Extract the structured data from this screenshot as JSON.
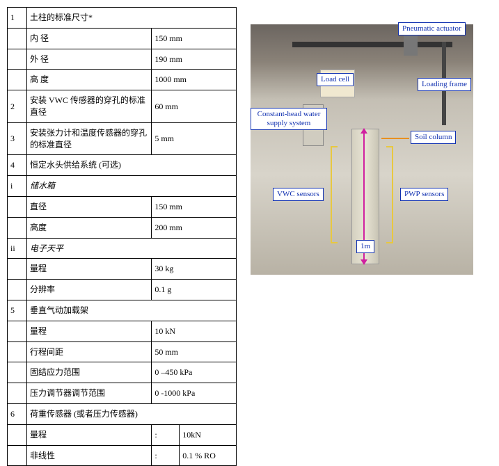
{
  "table": {
    "rows": [
      {
        "n": "1",
        "label": "土柱的标准尺寸*",
        "span": "header"
      },
      {
        "n": "",
        "label": "内 径",
        "val": "150 mm"
      },
      {
        "n": "",
        "label": "外 径",
        "val": "190 mm"
      },
      {
        "n": "",
        "label": "高 度",
        "val": "1000 mm"
      },
      {
        "n": "2",
        "label": "安装 VWC 传感器的穿孔的标准直径",
        "val": "60 mm"
      },
      {
        "n": "3",
        "label": "安装张力计和温度传感器的穿孔的标准直径",
        "val": "5 mm"
      },
      {
        "n": "4",
        "label": "恒定水头供给系统 (可选)",
        "span": "header"
      },
      {
        "n": "i",
        "label": "储水箱",
        "span": "sub",
        "italic": true
      },
      {
        "n": "",
        "label": "直径",
        "val": "150 mm"
      },
      {
        "n": "",
        "label": "高度",
        "val": "200 mm"
      },
      {
        "n": "ii",
        "label": "电子天平",
        "span": "sub",
        "italic": true
      },
      {
        "n": "",
        "label": "量程",
        "val": "30 kg"
      },
      {
        "n": "",
        "label": "分辨率",
        "val": "0.1 g"
      },
      {
        "n": "5",
        "label": "垂直气动加载架",
        "span": "header"
      },
      {
        "n": "",
        "label": "量程",
        "val": "10 kN"
      },
      {
        "n": "",
        "label": "行程间距",
        "val": "50 mm"
      },
      {
        "n": "",
        "label": "固结应力范围",
        "val": "0 –450 kPa"
      },
      {
        "n": "",
        "label": "压力调节器调节范围",
        "val": "0 -1000 kPa"
      },
      {
        "n": "6",
        "label": "荷重传感器 (或者压力传感器)",
        "span": "header"
      },
      {
        "n": "",
        "label": "量程",
        "mid": ":",
        "val": "10kN"
      },
      {
        "n": "",
        "label": "非线性",
        "mid": ":",
        "val": "0.1 % RO"
      }
    ]
  },
  "labels": {
    "pneumatic": "Pneumatic actuator",
    "loadcell": "Load cell",
    "loadframe": "Loading frame",
    "water": "Constant-head water\nsupply system",
    "soilcol": "Soil column",
    "vwc": "VWC sensors",
    "pwp": "PWP sensors",
    "dim": "1m"
  },
  "style": {
    "label_border_color": "#1030b0",
    "label_text_color": "#1030b0",
    "bracket_color": "#e8c840",
    "arrow_color": "#e89020",
    "dim_color": "#d020a0",
    "font_size_table": 12,
    "font_size_label": 11
  }
}
